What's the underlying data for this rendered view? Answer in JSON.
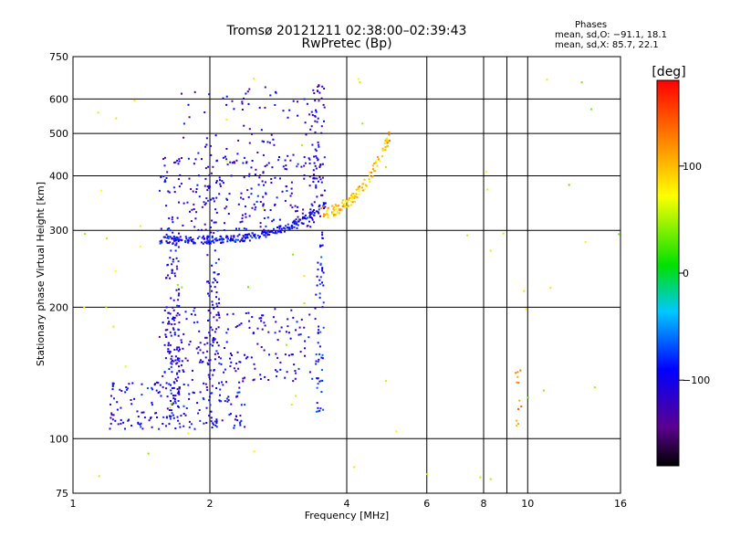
{
  "chart_data": {
    "type": "scatter",
    "title": "Tromsø 20121211 02:38:00–02:39:43",
    "subtitle": "RwPretec (Bp)",
    "xlabel": "Frequency [MHz]",
    "ylabel": "Stationary phase Virtual Height [km]",
    "xscale": "log",
    "yscale": "log",
    "xlim": [
      1,
      16
    ],
    "ylim": [
      75,
      750
    ],
    "x_ticks": [
      1,
      2,
      4,
      6,
      8,
      10,
      16
    ],
    "x_tick_labels": [
      "1",
      "2",
      "4",
      "6",
      "8",
      "10",
      "16"
    ],
    "x_minor": [
      9
    ],
    "y_ticks": [
      75,
      100,
      200,
      300,
      400,
      500,
      600,
      750
    ],
    "y_tick_labels": [
      "75",
      "100",
      "200",
      "300",
      "400",
      "500",
      "600",
      "750"
    ],
    "grid": true,
    "colorbar": {
      "label": "[deg]",
      "range": [
        -180,
        180
      ],
      "ticks": [
        100,
        0,
        -100
      ],
      "tick_labels": [
        "100",
        "0",
        "−100"
      ]
    },
    "stats": {
      "heading": "Phases",
      "line_o": "mean, sd,O: −91.1, 18.1",
      "line_x": "mean, sd,X: 85.7, 22.1"
    },
    "clusters": [
      {
        "name": "F-layer trace",
        "f": [
          1.55,
          3.6
        ],
        "h": [
          285,
          345
        ],
        "phase": -95,
        "n": 260,
        "shape": "curve"
      },
      {
        "name": "F spread",
        "f": [
          1.55,
          3.5
        ],
        "h": [
          300,
          440
        ],
        "phase": -105,
        "n": 260
      },
      {
        "name": "F upper",
        "f": [
          1.7,
          3.5
        ],
        "h": [
          440,
          640
        ],
        "phase": -110,
        "n": 70
      },
      {
        "name": "F cusp",
        "f": [
          3.35,
          3.58
        ],
        "h": [
          360,
          650
        ],
        "phase": -110,
        "n": 60
      },
      {
        "name": "X trace",
        "f": [
          3.5,
          5.0
        ],
        "h": [
          330,
          500
        ],
        "phase": 100,
        "n": 130,
        "shape": "xtrace"
      },
      {
        "name": "E/Es low",
        "f": [
          1.2,
          2.4
        ],
        "h": [
          105,
          135
        ],
        "phase": -100,
        "n": 180
      },
      {
        "name": "E/Es mid",
        "f": [
          1.55,
          3.5
        ],
        "h": [
          135,
          200
        ],
        "phase": -105,
        "n": 200
      },
      {
        "name": "Vertical 1.65",
        "f": [
          1.6,
          1.72
        ],
        "h": [
          105,
          300
        ],
        "phase": -100,
        "n": 120
      },
      {
        "name": "Vertical 2.0",
        "f": [
          1.97,
          2.1
        ],
        "h": [
          105,
          300
        ],
        "phase": -100,
        "n": 80
      },
      {
        "name": "Vertical 3.5",
        "f": [
          3.42,
          3.56
        ],
        "h": [
          110,
          300
        ],
        "phase": -90,
        "n": 60
      },
      {
        "name": "Sparse far",
        "f": [
          1.05,
          16
        ],
        "h": [
          80,
          700
        ],
        "phase": 60,
        "n": 60
      },
      {
        "name": "9.6 column",
        "f": [
          9.4,
          9.7
        ],
        "h": [
          105,
          150
        ],
        "phase": 120,
        "n": 12
      }
    ]
  }
}
